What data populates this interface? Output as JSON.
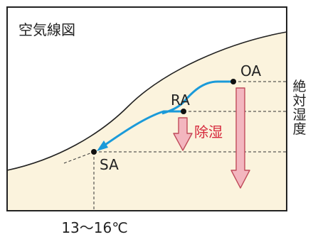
{
  "title": "空気線図",
  "points": {
    "oa": "OA",
    "ra": "RA",
    "sa": "SA"
  },
  "process_label": "除湿",
  "y_axis_label": [
    "絶",
    "対",
    "湿",
    "度"
  ],
  "x_axis_label": "13〜16℃",
  "colors": {
    "background": "#fbf3dd",
    "saturation_fill": "#ffffff",
    "frame": "#222222",
    "process_line": "#1a9ad9",
    "down_arrow_fill": "#f3b6bf",
    "down_arrow_stroke": "#c04b5a",
    "dehumid_text": "#d6283c",
    "guide_line": "#333333"
  }
}
